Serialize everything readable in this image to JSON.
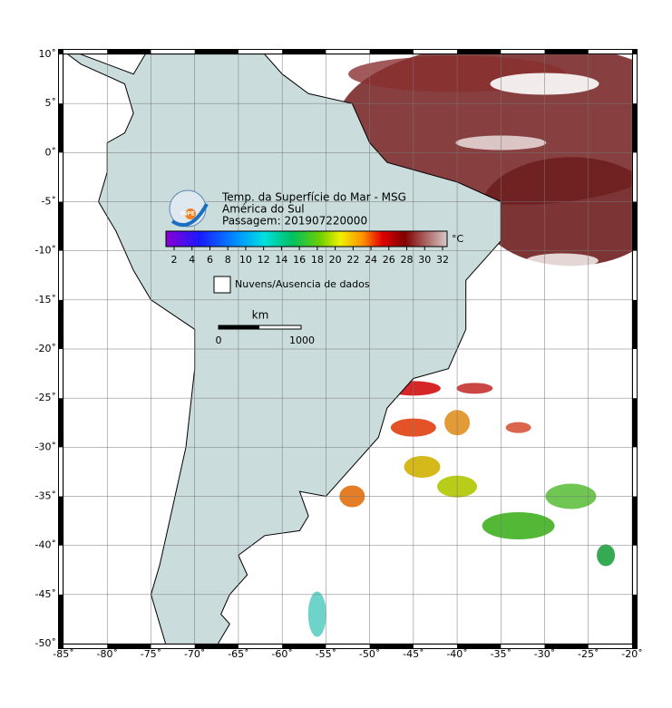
{
  "header": {
    "title": "Temp. da Superfície do Mar - MSG",
    "region": "América do Sul",
    "pass": "Passagem: 201907220000",
    "logo": "INPE"
  },
  "map": {
    "lon_labels": [
      "-85˚",
      "-80˚",
      "-75˚",
      "-70˚",
      "-65˚",
      "-60˚",
      "-55˚",
      "-50˚",
      "-45˚",
      "-40˚",
      "-35˚",
      "-30˚",
      "-25˚",
      "-20˚"
    ],
    "lat_labels": [
      "10˚",
      "5˚",
      "0˚",
      "-5˚",
      "-10˚",
      "-15˚",
      "-20˚",
      "-25˚",
      "-30˚",
      "-35˚",
      "-40˚",
      "-45˚",
      "-50˚"
    ]
  },
  "colorbar": {
    "labels": [
      "2",
      "4",
      "6",
      "8",
      "10",
      "12",
      "14",
      "16",
      "18",
      "20",
      "22",
      "24",
      "26",
      "28",
      "30",
      "32"
    ],
    "unit": "°C"
  },
  "clouds": {
    "label": "Nuvens/Ausencia de dados"
  },
  "scale": {
    "unit": "km",
    "start": "0",
    "end": "1000"
  }
}
